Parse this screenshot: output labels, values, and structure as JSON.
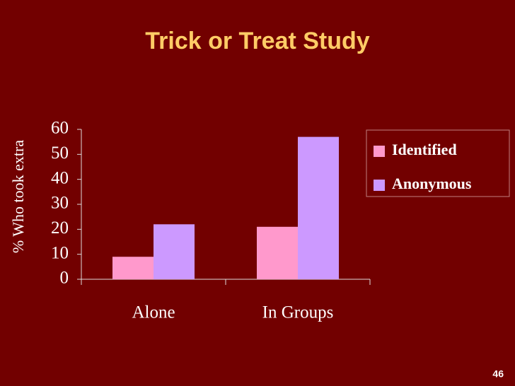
{
  "chart_data": {
    "type": "bar",
    "title": "Trick or Treat Study",
    "y_label": "% Who took extra",
    "categories": [
      "Alone",
      "In Groups"
    ],
    "series": [
      {
        "name": "Identified",
        "color": "#ff99cc",
        "values": [
          9,
          21
        ]
      },
      {
        "name": "Anonymous",
        "color": "#cc99ff",
        "values": [
          22,
          57
        ]
      }
    ],
    "ylim": [
      0,
      60
    ],
    "yticks": [
      0,
      10,
      20,
      30,
      40,
      50,
      60
    ],
    "legend": "right"
  },
  "slide_number": "46"
}
